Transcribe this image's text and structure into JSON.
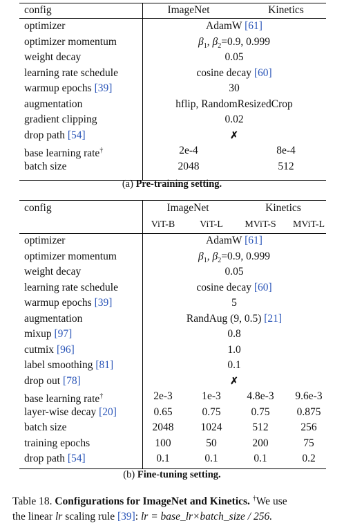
{
  "pretraining": {
    "header": {
      "config": "config",
      "imagenet": "ImageNet",
      "kinetics": "Kinetics"
    },
    "rows": [
      {
        "label": "optimizer",
        "value": "AdamW",
        "label_cite": "",
        "value_cite": "[61]"
      },
      {
        "label": "optimizer momentum",
        "value": "β1, β2=0.9, 0.999",
        "label_cite": "",
        "value_cite": ""
      },
      {
        "label": "weight decay",
        "value": "0.05",
        "label_cite": "",
        "value_cite": ""
      },
      {
        "label": "learning rate schedule",
        "value": "cosine decay",
        "label_cite": "",
        "value_cite": "[60]"
      },
      {
        "label": "warmup epochs",
        "value": "30",
        "label_cite": "[39]",
        "value_cite": ""
      },
      {
        "label": "augmentation",
        "value": "hflip, RandomResizedCrop",
        "label_cite": "",
        "value_cite": ""
      },
      {
        "label": "gradient clipping",
        "value": "0.02",
        "label_cite": "",
        "value_cite": ""
      },
      {
        "label": "drop path",
        "value": "✗",
        "label_cite": "[54]",
        "value_cite": ""
      }
    ],
    "split_rows": [
      {
        "label": "base learning rate",
        "dagger": "†",
        "imagenet": "2e-4",
        "kinetics": "8e-4"
      },
      {
        "label": "batch size",
        "dagger": "",
        "imagenet": "2048",
        "kinetics": "512"
      }
    ],
    "caption_prefix": "(a)",
    "caption_text": "Pre-training setting."
  },
  "finetuning": {
    "header": {
      "config": "config",
      "imagenet": "ImageNet",
      "kinetics": "Kinetics",
      "vitb": "ViT-B",
      "vitl": "ViT-L",
      "mvits": "MViT-S",
      "mvitl": "MViT-L"
    },
    "rows": [
      {
        "label": "optimizer",
        "value": "AdamW",
        "label_cite": "",
        "value_cite": "[61]"
      },
      {
        "label": "optimizer momentum",
        "value": "β1, β2=0.9, 0.999",
        "label_cite": "",
        "value_cite": ""
      },
      {
        "label": "weight decay",
        "value": "0.05",
        "label_cite": "",
        "value_cite": ""
      },
      {
        "label": "learning rate schedule",
        "value": "cosine decay",
        "label_cite": "",
        "value_cite": "[60]"
      },
      {
        "label": "warmup epochs",
        "value": "5",
        "label_cite": "[39]",
        "value_cite": ""
      },
      {
        "label": "augmentation",
        "value": "RandAug (9, 0.5)",
        "label_cite": "",
        "value_cite": "[21]"
      },
      {
        "label": "mixup",
        "value": "0.8",
        "label_cite": "[97]",
        "value_cite": ""
      },
      {
        "label": "cutmix",
        "value": "1.0",
        "label_cite": "[96]",
        "value_cite": ""
      },
      {
        "label": "label smoothing",
        "value": "0.1",
        "label_cite": "[81]",
        "value_cite": ""
      },
      {
        "label": "drop out",
        "value": "✗",
        "label_cite": "[78]",
        "value_cite": ""
      }
    ],
    "split_rows": [
      {
        "label": "base learning rate",
        "dagger": "†",
        "label_cite": "",
        "v": [
          "2e-3",
          "1e-3",
          "4.8e-3",
          "9.6e-3"
        ]
      },
      {
        "label": "layer-wise decay",
        "dagger": "",
        "label_cite": "[20]",
        "v": [
          "0.65",
          "0.75",
          "0.75",
          "0.875"
        ]
      },
      {
        "label": "batch size",
        "dagger": "",
        "label_cite": "",
        "v": [
          "2048",
          "1024",
          "512",
          "256"
        ]
      },
      {
        "label": "training epochs",
        "dagger": "",
        "label_cite": "",
        "v": [
          "100",
          "50",
          "200",
          "75"
        ]
      },
      {
        "label": "drop path",
        "dagger": "",
        "label_cite": "[54]",
        "v": [
          "0.1",
          "0.1",
          "0.1",
          "0.2"
        ]
      }
    ],
    "caption_prefix": "(b)",
    "caption_text": "Fine-tuning setting."
  },
  "table_caption": {
    "number": "Table 18.",
    "title": "Configurations for ImageNet and Kinetics.",
    "dagger": "†",
    "line1_rest": "We use",
    "line2_a": "the linear",
    "lr": "lr",
    "line2_b": "scaling rule",
    "cite": "[39]",
    "formula": "lr = base_lr×batch_size / 256."
  }
}
